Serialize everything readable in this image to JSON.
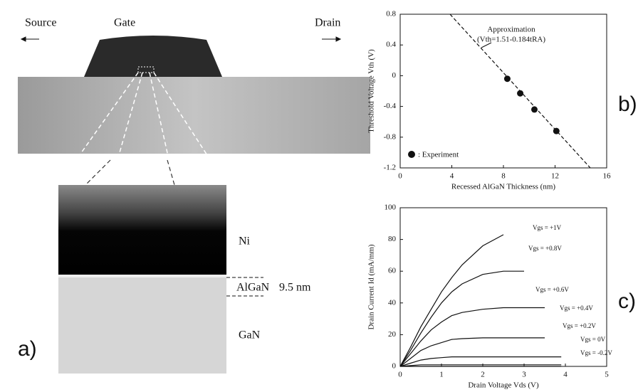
{
  "panel_a": {
    "source": "Source",
    "gate": "Gate",
    "drain": "Drain",
    "ni": "Ni",
    "algan": "AlGaN",
    "thickness": "9.5 nm",
    "gan": "GaN",
    "label": "a)"
  },
  "panel_labels": {
    "b": "b)",
    "c": "c)"
  },
  "chart_data": [
    {
      "type": "line",
      "x_label": "Recessed AlGaN Thickness (nm)",
      "y_label": "Threshold Voltage Vth (V)",
      "xlim": [
        0,
        16
      ],
      "xticks": [
        0,
        4,
        8,
        12,
        16
      ],
      "ylim": [
        -1.2,
        0.8
      ],
      "yticks": [
        0.8,
        0.4,
        0,
        -0.4,
        -0.8,
        -1.2
      ],
      "annotations": [
        "(Vth=1.51-0.184tRA)"
      ],
      "series": [
        {
          "name": "Approximation",
          "color": "#111",
          "style": "dashed",
          "x": [
            3.86,
            14.73
          ],
          "values": [
            0.8,
            -1.2
          ]
        },
        {
          "name": ": Experiment",
          "color": "#111",
          "style": "markers",
          "x": [
            8.3,
            9.3,
            10.4,
            12.1
          ],
          "values": [
            -0.04,
            -0.23,
            -0.44,
            -0.72
          ]
        }
      ]
    },
    {
      "type": "line",
      "x_label": "Drain Voltage Vds (V)",
      "y_label": "Drain Current Id (mA/mm)",
      "xlim": [
        0,
        5
      ],
      "xticks": [
        0,
        1,
        2,
        3,
        4,
        5
      ],
      "ylim": [
        0,
        100
      ],
      "yticks": [
        0,
        20,
        40,
        60,
        80,
        100
      ],
      "x": [
        0,
        0.25,
        0.5,
        0.75,
        1,
        1.25,
        1.5,
        2,
        2.5,
        3,
        3.5,
        3.9
      ],
      "series": [
        {
          "name": "Vgs = +1V",
          "color": "#111",
          "values": [
            0,
            12,
            25,
            36,
            47,
            56,
            64,
            76,
            83,
            null,
            null,
            null
          ]
        },
        {
          "name": "Vgs = +0.8V",
          "color": "#111",
          "values": [
            0,
            10,
            21,
            31,
            40,
            47,
            52,
            58,
            60,
            60,
            null,
            null
          ]
        },
        {
          "name": "Vgs = +0.6V",
          "color": "#111",
          "values": [
            0,
            8,
            16,
            23,
            28,
            32,
            34,
            36,
            37,
            37,
            37,
            null
          ]
        },
        {
          "name": "Vgs = +0.4V",
          "color": "#111",
          "values": [
            0,
            5,
            10,
            13,
            15,
            17,
            17.5,
            18,
            18,
            18,
            18,
            null
          ]
        },
        {
          "name": "Vgs = +0.2V",
          "color": "#111",
          "values": [
            0,
            2,
            4,
            5,
            5.5,
            6,
            6,
            6,
            6,
            6,
            6,
            6
          ]
        },
        {
          "name": "Vgs = 0V",
          "color": "#111",
          "values": [
            0,
            0.5,
            1,
            1,
            1,
            1,
            1,
            1,
            1,
            1,
            1,
            1
          ]
        },
        {
          "name": "Vgs = -0.2V",
          "color": "#111",
          "values": [
            0,
            0,
            0,
            0,
            0,
            0,
            0,
            0,
            0,
            0,
            0,
            0
          ]
        }
      ]
    }
  ]
}
